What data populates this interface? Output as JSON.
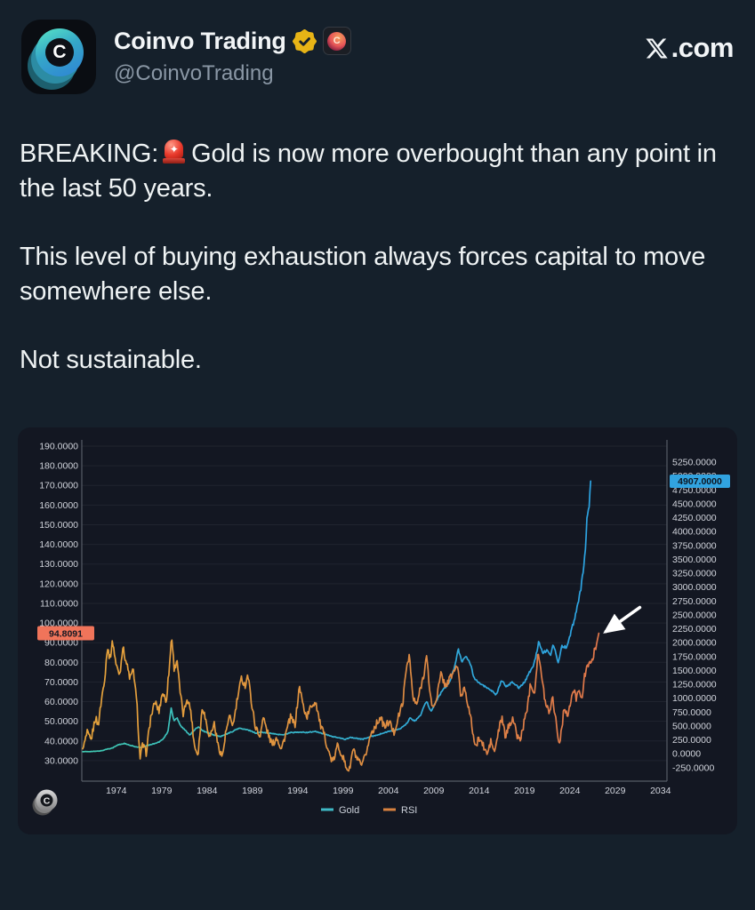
{
  "header": {
    "name": "Coinvo Trading",
    "handle": "@CoinvoTrading",
    "avatar_letter": "C",
    "verified_badge": "gold-verified",
    "affiliate_badge": "coinvo-affiliate",
    "site_suffix": ".com"
  },
  "tweet": {
    "p1_prefix": "BREAKING:",
    "p1_emoji": "police-car-light",
    "p1_text": "Gold is now more overbought than any point in the last 50 years.",
    "p2": "This level of buying exhaustion always forces capital to move somewhere else.",
    "p3": "Not sustainable."
  },
  "chart_data": {
    "type": "line",
    "grid": "horizontal-only",
    "background": "#131722",
    "legend_position": "bottom-center",
    "watermark_letter": "C",
    "legend": [
      {
        "name": "Gold",
        "color": "#3fb9c5"
      },
      {
        "name": "RSI",
        "color": "#d9823f"
      }
    ],
    "x_axis": {
      "labels": [
        "1974",
        "1979",
        "1984",
        "1989",
        "1994",
        "1999",
        "2004",
        "2009",
        "2014",
        "2019",
        "2024",
        "2029",
        "2034"
      ],
      "first_label_year": 1974,
      "label_step_years": 5
    },
    "left_axis": {
      "role": "RSI scale",
      "min": 30,
      "max": 190,
      "ticks": [
        "190.0000",
        "180.0000",
        "170.0000",
        "160.0000",
        "150.0000",
        "140.0000",
        "130.0000",
        "120.0000",
        "110.0000",
        "100.0000",
        "90.0000",
        "80.0000",
        "70.0000",
        "60.0000",
        "50.0000",
        "40.0000",
        "30.0000"
      ],
      "last_value": "94.8091",
      "last_value_num": 94.8091,
      "badge_color": "#f0745a",
      "badge_text_color": "#131722"
    },
    "right_axis": {
      "role": "Gold price scale",
      "min": -250,
      "max": 5250,
      "ticks": [
        "5250.0000",
        "5000.0000",
        "4750.0000",
        "4500.0000",
        "4250.0000",
        "4000.0000",
        "3750.0000",
        "3500.0000",
        "3250.0000",
        "3000.0000",
        "2750.0000",
        "2500.0000",
        "2250.0000",
        "2000.0000",
        "1750.0000",
        "1500.0000",
        "1250.0000",
        "1000.0000",
        "750.0000",
        "500.0000",
        "250.0000",
        "0.0000",
        "-250.0000"
      ],
      "last_value": "4907.0000",
      "last_value_num": 4907,
      "badge_color": "#31a3e0",
      "badge_text_color": "#0d1520"
    },
    "series": [
      {
        "name": "Gold",
        "axis": "right",
        "color_start": "#40c8b0",
        "color_mid": "#32abd6",
        "color_end": "#2ba0e6",
        "points": [
          [
            1970.3,
            36
          ],
          [
            1971,
            40
          ],
          [
            1971.8,
            44
          ],
          [
            1972.4,
            55
          ],
          [
            1973,
            85
          ],
          [
            1973.6,
            105
          ],
          [
            1974.2,
            160
          ],
          [
            1974.9,
            185
          ],
          [
            1975.5,
            150
          ],
          [
            1976.1,
            128
          ],
          [
            1976.7,
            110
          ],
          [
            1977.3,
            140
          ],
          [
            1978,
            175
          ],
          [
            1978.7,
            210
          ],
          [
            1979.2,
            270
          ],
          [
            1979.7,
            400
          ],
          [
            1980.05,
            820
          ],
          [
            1980.35,
            600
          ],
          [
            1980.7,
            650
          ],
          [
            1981.1,
            500
          ],
          [
            1981.6,
            420
          ],
          [
            1982.1,
            340
          ],
          [
            1982.6,
            420
          ],
          [
            1983.05,
            490
          ],
          [
            1983.6,
            410
          ],
          [
            1984.2,
            370
          ],
          [
            1984.9,
            330
          ],
          [
            1985.5,
            310
          ],
          [
            1986.1,
            350
          ],
          [
            1986.8,
            400
          ],
          [
            1987.5,
            460
          ],
          [
            1988.1,
            440
          ],
          [
            1988.8,
            415
          ],
          [
            1989.4,
            370
          ],
          [
            1990,
            395
          ],
          [
            1990.7,
            375
          ],
          [
            1991.5,
            355
          ],
          [
            1992.3,
            340
          ],
          [
            1993.2,
            380
          ],
          [
            1994,
            385
          ],
          [
            1995,
            385
          ],
          [
            1996,
            400
          ],
          [
            1996.8,
            360
          ],
          [
            1997.6,
            320
          ],
          [
            1998.4,
            290
          ],
          [
            1999.2,
            260
          ],
          [
            1999.8,
            295
          ],
          [
            2000.5,
            275
          ],
          [
            2001.2,
            262
          ],
          [
            2002,
            305
          ],
          [
            2002.8,
            340
          ],
          [
            2003.6,
            380
          ],
          [
            2004.4,
            420
          ],
          [
            2005.2,
            440
          ],
          [
            2005.9,
            520
          ],
          [
            2006.4,
            640
          ],
          [
            2006.9,
            590
          ],
          [
            2007.5,
            680
          ],
          [
            2008.2,
            950
          ],
          [
            2008.7,
            760
          ],
          [
            2009.2,
            920
          ],
          [
            2009.9,
            1130
          ],
          [
            2010.6,
            1250
          ],
          [
            2011.2,
            1500
          ],
          [
            2011.7,
            1880
          ],
          [
            2012.1,
            1670
          ],
          [
            2012.6,
            1740
          ],
          [
            2013.1,
            1600
          ],
          [
            2013.4,
            1380
          ],
          [
            2014,
            1280
          ],
          [
            2014.7,
            1200
          ],
          [
            2015.4,
            1140
          ],
          [
            2015.9,
            1060
          ],
          [
            2016.5,
            1330
          ],
          [
            2017,
            1210
          ],
          [
            2017.7,
            1290
          ],
          [
            2018.4,
            1190
          ],
          [
            2019,
            1290
          ],
          [
            2019.6,
            1480
          ],
          [
            2020,
            1580
          ],
          [
            2020.6,
            2030
          ],
          [
            2021,
            1810
          ],
          [
            2021.5,
            1870
          ],
          [
            2021.9,
            1790
          ],
          [
            2022.2,
            1970
          ],
          [
            2022.7,
            1640
          ],
          [
            2023.1,
            1930
          ],
          [
            2023.6,
            1920
          ],
          [
            2023.9,
            2040
          ],
          [
            2024.2,
            2250
          ],
          [
            2024.5,
            2400
          ],
          [
            2024.8,
            2620
          ],
          [
            2025.0,
            2780
          ],
          [
            2025.2,
            2950
          ],
          [
            2025.4,
            3200
          ],
          [
            2025.55,
            3380
          ],
          [
            2025.7,
            3650
          ],
          [
            2025.8,
            3900
          ],
          [
            2025.88,
            4250
          ],
          [
            2025.94,
            4150
          ],
          [
            2026.0,
            4500
          ],
          [
            2026.1,
            4350
          ],
          [
            2026.2,
            4700
          ],
          [
            2026.3,
            4907
          ]
        ]
      },
      {
        "name": "RSI",
        "axis": "left",
        "color_start": "#e5a33b",
        "color_mid": "#dd8b42",
        "color_end": "#e2704e",
        "points": [
          [
            1970.3,
            36
          ],
          [
            1970.8,
            44
          ],
          [
            1971.2,
            40
          ],
          [
            1971.7,
            52
          ],
          [
            1972.0,
            48
          ],
          [
            1972.4,
            62
          ],
          [
            1972.8,
            75
          ],
          [
            1973.0,
            88
          ],
          [
            1973.3,
            82
          ],
          [
            1973.6,
            91
          ],
          [
            1974.0,
            78
          ],
          [
            1974.4,
            74
          ],
          [
            1974.7,
            88
          ],
          [
            1975.1,
            80
          ],
          [
            1975.5,
            72
          ],
          [
            1975.9,
            76
          ],
          [
            1976.3,
            57
          ],
          [
            1976.6,
            31
          ],
          [
            1976.9,
            38
          ],
          [
            1977.3,
            34
          ],
          [
            1977.8,
            52
          ],
          [
            1978.3,
            60
          ],
          [
            1978.7,
            55
          ],
          [
            1979.1,
            65
          ],
          [
            1979.5,
            60
          ],
          [
            1979.9,
            80
          ],
          [
            1980.1,
            94
          ],
          [
            1980.4,
            76
          ],
          [
            1980.7,
            82
          ],
          [
            1981.0,
            66
          ],
          [
            1981.4,
            53
          ],
          [
            1981.8,
            62
          ],
          [
            1982.2,
            56
          ],
          [
            1982.6,
            38
          ],
          [
            1983.0,
            33
          ],
          [
            1983.5,
            58
          ],
          [
            1983.9,
            50
          ],
          [
            1984.3,
            42
          ],
          [
            1984.8,
            49
          ],
          [
            1985.2,
            38
          ],
          [
            1985.7,
            32
          ],
          [
            1986.1,
            45
          ],
          [
            1986.5,
            52
          ],
          [
            1986.9,
            48
          ],
          [
            1987.3,
            60
          ],
          [
            1987.8,
            72
          ],
          [
            1988.2,
            68
          ],
          [
            1988.5,
            74
          ],
          [
            1988.9,
            60
          ],
          [
            1989.3,
            48
          ],
          [
            1989.8,
            42
          ],
          [
            1990.2,
            52
          ],
          [
            1990.7,
            44
          ],
          [
            1991.2,
            38
          ],
          [
            1991.7,
            42
          ],
          [
            1992.2,
            36
          ],
          [
            1992.7,
            44
          ],
          [
            1993.2,
            52
          ],
          [
            1993.7,
            48
          ],
          [
            1994.2,
            68
          ],
          [
            1994.6,
            58
          ],
          [
            1995.0,
            52
          ],
          [
            1995.5,
            58
          ],
          [
            1996.0,
            60
          ],
          [
            1996.5,
            48
          ],
          [
            1997.0,
            42
          ],
          [
            1997.5,
            33
          ],
          [
            1997.9,
            29
          ],
          [
            1998.4,
            38
          ],
          [
            1998.9,
            33
          ],
          [
            1999.3,
            27
          ],
          [
            1999.7,
            25
          ],
          [
            2000.1,
            36
          ],
          [
            2000.6,
            30
          ],
          [
            2001.1,
            27
          ],
          [
            2001.6,
            35
          ],
          [
            2002.1,
            44
          ],
          [
            2002.6,
            48
          ],
          [
            2003.1,
            52
          ],
          [
            2003.6,
            47
          ],
          [
            2004.1,
            50
          ],
          [
            2004.6,
            44
          ],
          [
            2005.1,
            52
          ],
          [
            2005.6,
            60
          ],
          [
            2006.0,
            78
          ],
          [
            2006.3,
            84
          ],
          [
            2006.7,
            62
          ],
          [
            2007.1,
            58
          ],
          [
            2007.5,
            66
          ],
          [
            2007.9,
            74
          ],
          [
            2008.2,
            83
          ],
          [
            2008.6,
            64
          ],
          [
            2008.9,
            56
          ],
          [
            2009.3,
            62
          ],
          [
            2009.8,
            74
          ],
          [
            2010.3,
            68
          ],
          [
            2010.8,
            72
          ],
          [
            2011.3,
            76
          ],
          [
            2011.6,
            79
          ],
          [
            2012.0,
            62
          ],
          [
            2012.4,
            68
          ],
          [
            2012.8,
            58
          ],
          [
            2013.2,
            48
          ],
          [
            2013.6,
            36
          ],
          [
            2014.0,
            42
          ],
          [
            2014.4,
            38
          ],
          [
            2014.9,
            33
          ],
          [
            2015.3,
            40
          ],
          [
            2015.7,
            34
          ],
          [
            2016.1,
            44
          ],
          [
            2016.5,
            52
          ],
          [
            2016.9,
            42
          ],
          [
            2017.3,
            48
          ],
          [
            2017.7,
            52
          ],
          [
            2018.1,
            44
          ],
          [
            2018.5,
            40
          ],
          [
            2018.9,
            48
          ],
          [
            2019.3,
            57
          ],
          [
            2019.7,
            70
          ],
          [
            2020.1,
            64
          ],
          [
            2020.5,
            86
          ],
          [
            2020.9,
            72
          ],
          [
            2021.3,
            60
          ],
          [
            2021.7,
            55
          ],
          [
            2022.1,
            62
          ],
          [
            2022.5,
            50
          ],
          [
            2022.8,
            38
          ],
          [
            2023.1,
            46
          ],
          [
            2023.4,
            58
          ],
          [
            2023.8,
            52
          ],
          [
            2024.1,
            60
          ],
          [
            2024.4,
            66
          ],
          [
            2024.7,
            62
          ],
          [
            2025.0,
            68
          ],
          [
            2025.3,
            60
          ],
          [
            2025.6,
            72
          ],
          [
            2025.9,
            80
          ],
          [
            2026.3,
            78
          ],
          [
            2026.7,
            86
          ],
          [
            2027.0,
            90
          ],
          [
            2027.2,
            94.8091
          ]
        ]
      }
    ],
    "annotation_arrow": {
      "target": "rsi-last-point",
      "color": "#ffffff"
    }
  }
}
